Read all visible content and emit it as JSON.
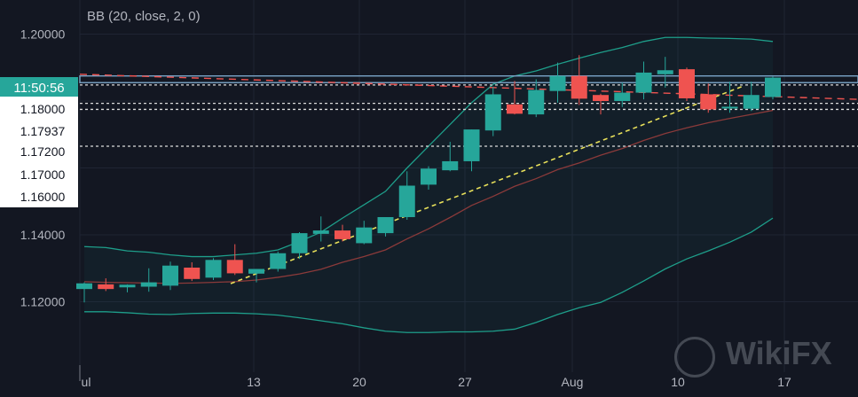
{
  "indicator_label": "BB (20, close, 2, 0)",
  "watermark": "WikiFX",
  "current_time_label": "11:50:56",
  "colors": {
    "background": "#131722",
    "bull": "#26a69a",
    "bear": "#ef5350",
    "bb_band": "#1e9e8a",
    "bb_basis": "#8b3a3a",
    "trend": "#e8e05a",
    "axis_text": "#b2b5be",
    "time_badge": "#26a69a"
  },
  "chart_data": {
    "type": "candlestick",
    "title": "",
    "ylim": [
      1.1075,
      1.2045
    ],
    "y_ticks": [
      "1.20000",
      "1.18000",
      "1.17937",
      "1.17200",
      "1.17000",
      "1.16000",
      "1.14000",
      "1.12000"
    ],
    "x_ticks": [
      "ul",
      "13",
      "20",
      "27",
      "Aug",
      "10",
      "17"
    ],
    "candles": [
      {
        "o": 1.1238,
        "h": 1.1258,
        "l": 1.1198,
        "c": 1.1255
      },
      {
        "o": 1.1252,
        "h": 1.127,
        "l": 1.1232,
        "c": 1.1238
      },
      {
        "o": 1.1243,
        "h": 1.1252,
        "l": 1.1228,
        "c": 1.1251
      },
      {
        "o": 1.1245,
        "h": 1.13,
        "l": 1.123,
        "c": 1.1258
      },
      {
        "o": 1.1248,
        "h": 1.132,
        "l": 1.1235,
        "c": 1.1308
      },
      {
        "o": 1.1302,
        "h": 1.1318,
        "l": 1.1262,
        "c": 1.1268
      },
      {
        "o": 1.1272,
        "h": 1.133,
        "l": 1.1265,
        "c": 1.1325
      },
      {
        "o": 1.1325,
        "h": 1.1372,
        "l": 1.128,
        "c": 1.1285
      },
      {
        "o": 1.1284,
        "h": 1.1298,
        "l": 1.1258,
        "c": 1.1298
      },
      {
        "o": 1.1298,
        "h": 1.135,
        "l": 1.129,
        "c": 1.1345
      },
      {
        "o": 1.1345,
        "h": 1.1408,
        "l": 1.1328,
        "c": 1.1405
      },
      {
        "o": 1.1403,
        "h": 1.1455,
        "l": 1.138,
        "c": 1.1413
      },
      {
        "o": 1.1413,
        "h": 1.143,
        "l": 1.138,
        "c": 1.1387
      },
      {
        "o": 1.1375,
        "h": 1.1442,
        "l": 1.1372,
        "c": 1.1422
      },
      {
        "o": 1.1405,
        "h": 1.1453,
        "l": 1.1395,
        "c": 1.1453
      },
      {
        "o": 1.1453,
        "h": 1.159,
        "l": 1.1445,
        "c": 1.1547
      },
      {
        "o": 1.155,
        "h": 1.1605,
        "l": 1.1535,
        "c": 1.1598
      },
      {
        "o": 1.1593,
        "h": 1.1678,
        "l": 1.159,
        "c": 1.162
      },
      {
        "o": 1.162,
        "h": 1.1715,
        "l": 1.159,
        "c": 1.1715
      },
      {
        "o": 1.1712,
        "h": 1.1843,
        "l": 1.1695,
        "c": 1.182
      },
      {
        "o": 1.179,
        "h": 1.186,
        "l": 1.176,
        "c": 1.1762
      },
      {
        "o": 1.176,
        "h": 1.1865,
        "l": 1.1752,
        "c": 1.1833
      },
      {
        "o": 1.183,
        "h": 1.1915,
        "l": 1.1795,
        "c": 1.1875
      },
      {
        "o": 1.1875,
        "h": 1.1937,
        "l": 1.1788,
        "c": 1.1807
      },
      {
        "o": 1.1818,
        "h": 1.1822,
        "l": 1.176,
        "c": 1.18
      },
      {
        "o": 1.18,
        "h": 1.1855,
        "l": 1.1782,
        "c": 1.1825
      },
      {
        "o": 1.1825,
        "h": 1.1918,
        "l": 1.1805,
        "c": 1.1885
      },
      {
        "o": 1.188,
        "h": 1.1932,
        "l": 1.184,
        "c": 1.1892
      },
      {
        "o": 1.1895,
        "h": 1.19,
        "l": 1.18,
        "c": 1.1808
      },
      {
        "o": 1.182,
        "h": 1.1852,
        "l": 1.1765,
        "c": 1.1775
      },
      {
        "o": 1.178,
        "h": 1.1858,
        "l": 1.1765,
        "c": 1.1783
      },
      {
        "o": 1.1777,
        "h": 1.1858,
        "l": 1.177,
        "c": 1.1818
      },
      {
        "o": 1.1812,
        "h": 1.1873,
        "l": 1.1805,
        "c": 1.187
      }
    ],
    "bb_upper": [
      1.1365,
      1.1362,
      1.1352,
      1.1348,
      1.134,
      1.1335,
      1.1335,
      1.134,
      1.1345,
      1.1355,
      1.138,
      1.1408,
      1.145,
      1.149,
      1.153,
      1.16,
      1.1665,
      1.173,
      1.1795,
      1.185,
      1.1875,
      1.189,
      1.191,
      1.1928,
      1.1945,
      1.196,
      1.1978,
      1.199,
      1.199,
      1.1988,
      1.1987,
      1.1985,
      1.1978
    ],
    "bb_basis": [
      1.126,
      1.1258,
      1.1257,
      1.1256,
      1.1255,
      1.1256,
      1.1258,
      1.126,
      1.1265,
      1.1273,
      1.1283,
      1.1297,
      1.1318,
      1.1335,
      1.1355,
      1.1388,
      1.1418,
      1.1452,
      1.1488,
      1.1515,
      1.1545,
      1.1568,
      1.1595,
      1.1615,
      1.1638,
      1.1658,
      1.1682,
      1.1703,
      1.172,
      1.1735,
      1.1748,
      1.176,
      1.1772
    ],
    "bb_lower": [
      1.117,
      1.117,
      1.1167,
      1.1163,
      1.1162,
      1.1165,
      1.1166,
      1.1166,
      1.1164,
      1.116,
      1.1152,
      1.1143,
      1.1134,
      1.1122,
      1.1112,
      1.1108,
      1.1108,
      1.111,
      1.111,
      1.1112,
      1.1118,
      1.1138,
      1.1162,
      1.1182,
      1.1198,
      1.1228,
      1.1262,
      1.1298,
      1.1328,
      1.1352,
      1.1378,
      1.1408,
      1.145
    ]
  }
}
